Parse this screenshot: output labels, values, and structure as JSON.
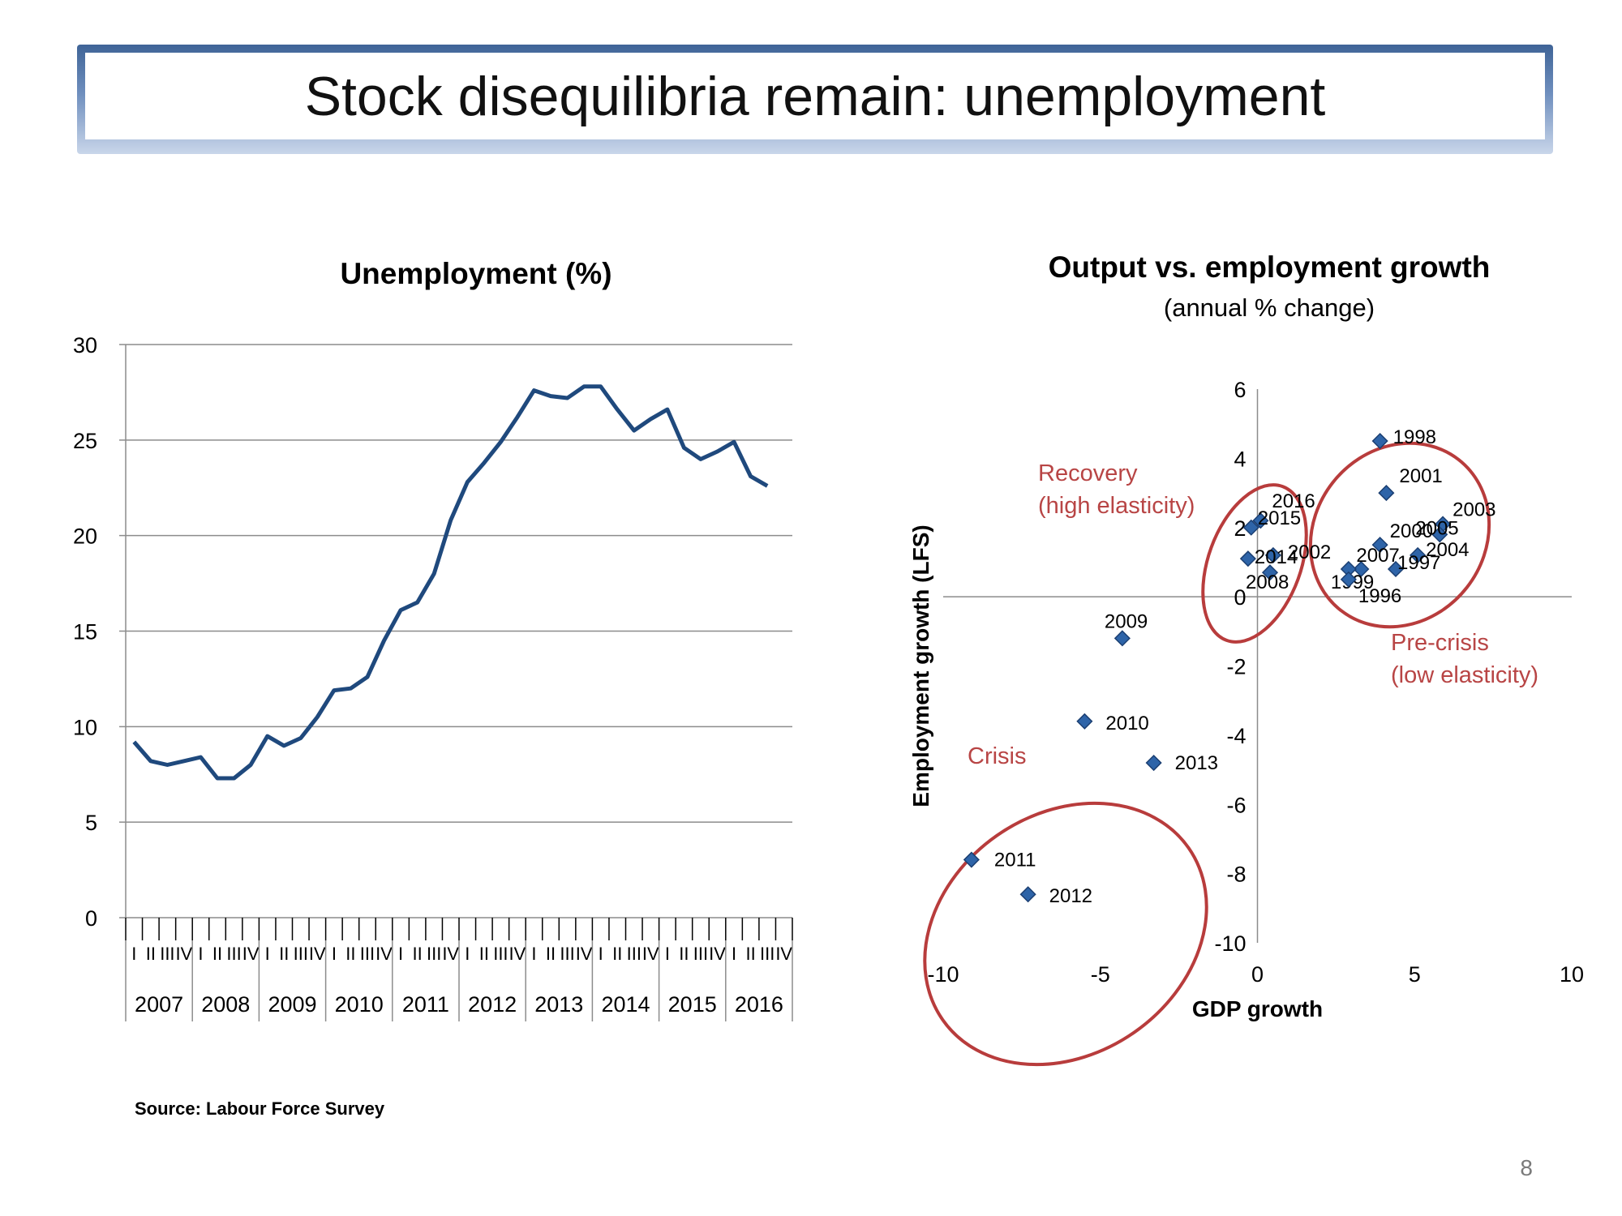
{
  "slide": {
    "title": "Stock disequilibria remain: unemployment",
    "source": "Source: Labour Force Survey",
    "page_number": "8"
  },
  "colors": {
    "series": "#1f497d",
    "point": "#2e64a8",
    "ellipse": "#b83c3c",
    "annotation": "#b84545",
    "grid": "#8c8c8c"
  },
  "chart_data": [
    {
      "type": "line",
      "title": "Unemployment (%)",
      "ylim": [
        0,
        30
      ],
      "yticks": [
        0,
        5,
        10,
        15,
        20,
        25,
        30
      ],
      "quarter_labels": [
        "I",
        "II",
        "III",
        "IV"
      ],
      "years": [
        "2007",
        "2008",
        "2009",
        "2010",
        "2011",
        "2012",
        "2013",
        "2014",
        "2015",
        "2016"
      ],
      "series": [
        {
          "values": [
            9.2,
            8.2,
            8.0,
            8.2,
            8.4,
            7.3,
            7.3,
            8.0,
            9.5,
            9.0,
            9.4,
            10.5,
            11.9,
            12.0,
            12.6,
            14.5,
            16.1,
            16.5,
            18.0,
            20.8,
            22.8,
            23.8,
            24.9,
            26.2,
            27.6,
            27.3,
            27.2,
            27.8,
            27.8,
            26.6,
            25.5,
            26.1,
            26.6,
            24.6,
            24.0,
            24.4,
            24.9,
            23.1,
            22.6
          ]
        }
      ]
    },
    {
      "type": "scatter",
      "title": "Output vs. employment growth",
      "subtitle": "(annual % change)",
      "xlabel": "GDP growth",
      "ylabel": "Employment growth (LFS)",
      "xlim": [
        -10,
        10
      ],
      "ylim": [
        -10,
        6
      ],
      "xticks": [
        -10,
        -5,
        0,
        5,
        10
      ],
      "yticks": [
        6,
        4,
        2,
        0,
        -2,
        -4,
        -6,
        -8,
        -10
      ],
      "points": [
        {
          "label": "1998",
          "x": 3.9,
          "y": 4.5
        },
        {
          "label": "2001",
          "x": 4.1,
          "y": 3.0
        },
        {
          "label": "2003",
          "x": 5.9,
          "y": 2.1
        },
        {
          "label": "2005",
          "x": 5.8,
          "y": 1.8
        },
        {
          "label": "2000",
          "x": 3.9,
          "y": 1.5
        },
        {
          "label": "2004",
          "x": 5.1,
          "y": 1.2
        },
        {
          "label": "2007",
          "x": 3.3,
          "y": 0.8
        },
        {
          "label": "1997",
          "x": 4.4,
          "y": 0.8
        },
        {
          "label": "1999",
          "x": 2.9,
          "y": 0.8
        },
        {
          "label": "1996",
          "x": 2.9,
          "y": 0.5
        },
        {
          "label": "2016",
          "x": 0.1,
          "y": 2.2
        },
        {
          "label": "2015",
          "x": -0.2,
          "y": 2.0
        },
        {
          "label": "2002",
          "x": 0.5,
          "y": 1.2
        },
        {
          "label": "2014",
          "x": -0.3,
          "y": 1.1
        },
        {
          "label": "2008",
          "x": 0.4,
          "y": 0.7
        },
        {
          "label": "2009",
          "x": -4.3,
          "y": -1.2
        },
        {
          "label": "2010",
          "x": -5.5,
          "y": -3.6
        },
        {
          "label": "2013",
          "x": -3.3,
          "y": -4.8
        },
        {
          "label": "2011",
          "x": -9.1,
          "y": -7.6
        },
        {
          "label": "2012",
          "x": -7.3,
          "y": -8.6
        }
      ],
      "annotations": [
        {
          "lines": [
            "Recovery",
            "(high elasticity)"
          ]
        },
        {
          "lines": [
            "Pre-crisis",
            "(low elasticity)"
          ]
        },
        {
          "lines": [
            "Crisis"
          ]
        }
      ]
    }
  ]
}
